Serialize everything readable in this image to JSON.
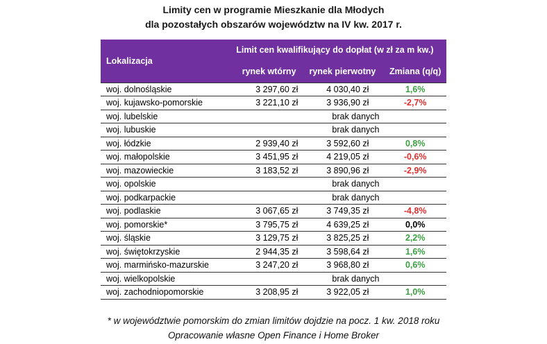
{
  "title_line1": "Limity cen w programie Mieszkanie dla Młodych",
  "title_line2": "dla pozostałych obszarów województw na IV kw. 2017 r.",
  "header": {
    "location": "Lokalizacja",
    "group": "Limit cen kwalifikujący do dopłat (w zł za m kw.)",
    "secondary": "rynek wtórny",
    "primary": "rynek pierwotny",
    "change": "Zmiana (q/q)"
  },
  "rows": [
    {
      "loc": "woj. dolnośląskie",
      "secondary": "3 297,60 zł",
      "primary": "4 030,40 zł",
      "change": "1,6%",
      "trend": "pos"
    },
    {
      "loc": "woj. kujawsko-pomorskie",
      "secondary": "3 221,10 zł",
      "primary": "3 936,90 zł",
      "change": "-2,7%",
      "trend": "neg"
    },
    {
      "loc": "woj. lubelskie",
      "nodata": "brak danych"
    },
    {
      "loc": "woj. lubuskie",
      "nodata": "brak danych"
    },
    {
      "loc": "woj. łódzkie",
      "secondary": "2 939,40 zł",
      "primary": "3 592,60 zł",
      "change": "0,8%",
      "trend": "pos"
    },
    {
      "loc": "woj. małopolskie",
      "secondary": "3 451,95 zł",
      "primary": "4 219,05 zł",
      "change": "-0,6%",
      "trend": "neg"
    },
    {
      "loc": "woj. mazowieckie",
      "secondary": "3 183,52 zł",
      "primary": "3 890,96 zł",
      "change": "-2,9%",
      "trend": "neg"
    },
    {
      "loc": "woj. opolskie",
      "nodata": "brak danych"
    },
    {
      "loc": "woj. podkarpackie",
      "nodata": "brak danych"
    },
    {
      "loc": "woj. podlaskie",
      "secondary": "3 067,65 zł",
      "primary": "3 749,35 zł",
      "change": "-4,8%",
      "trend": "neg"
    },
    {
      "loc": "woj. pomorskie*",
      "secondary": "3 795,75 zł",
      "primary": "4 639,25 zł",
      "change": "0,0%",
      "trend": "zero"
    },
    {
      "loc": "woj. śląskie",
      "secondary": "3 129,75 zł",
      "primary": "3 825,25 zł",
      "change": "2,2%",
      "trend": "pos"
    },
    {
      "loc": "woj. świętokrzyskie",
      "secondary": "2 944,35 zł",
      "primary": "3 598,64 zł",
      "change": "1,6%",
      "trend": "pos"
    },
    {
      "loc": "woj. marmińsko-mazurskie",
      "secondary": "3 247,20 zł",
      "primary": "3 968,80 zł",
      "change": "0,6%",
      "trend": "pos"
    },
    {
      "loc": "woj. wielkopolskie",
      "nodata": "brak danych"
    },
    {
      "loc": "woj. zachodniopomorskie",
      "secondary": "3 208,95 zł",
      "primary": "3 922,05 zł",
      "change": "1,0%",
      "trend": "pos"
    }
  ],
  "footnote": "* w województwie pomorskim do zmian limitów dojdzie na pocz. 1 kw. 2018 roku",
  "source": "Opracowanie własne Open Finance i Home Broker",
  "colors": {
    "header_bg": "#7030a0",
    "positive": "#3aa040",
    "negative": "#e03030"
  }
}
